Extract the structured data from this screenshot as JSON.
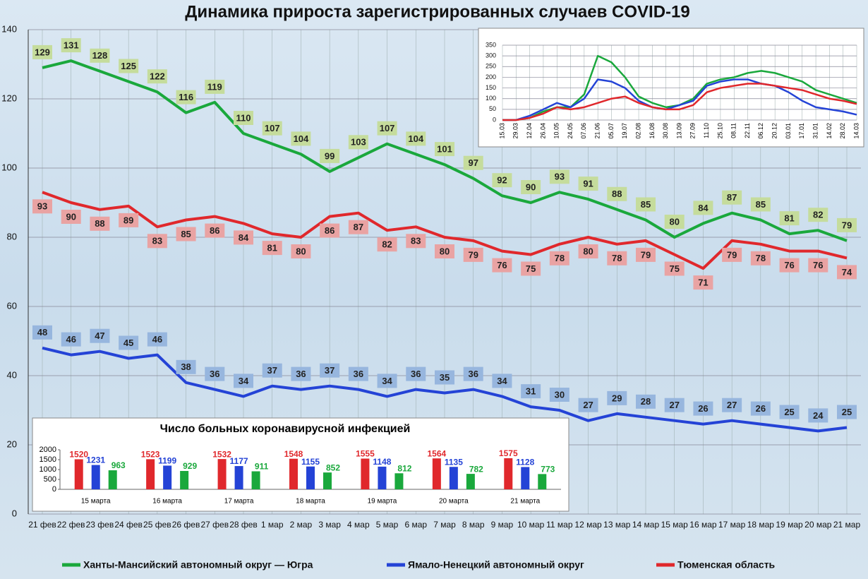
{
  "chart_data": [
    {
      "type": "line",
      "title": "Динамика прироста зарегистрированных случаев COVID-19",
      "categories": [
        "21 фев",
        "22 фев",
        "23 фев",
        "24 фев",
        "25 фев",
        "26 фев",
        "27 фев",
        "28 фев",
        "1 мар",
        "2 мар",
        "3 мар",
        "4 мар",
        "5 мар",
        "6 мар",
        "7 мар",
        "8 мар",
        "9 мар",
        "10 мар",
        "11 мар",
        "12 мар",
        "13 мар",
        "14 мар",
        "15 мар",
        "16 мар",
        "17 мар",
        "18 мар",
        "19 мар",
        "20 мар",
        "21 мар"
      ],
      "series": [
        {
          "name": "Ханты-Мансийский автономный округ — Югра",
          "color": "#1aa83c",
          "values": [
            129,
            131,
            128,
            125,
            122,
            116,
            119,
            110,
            107,
            104,
            99,
            103,
            107,
            104,
            101,
            97,
            92,
            90,
            93,
            91,
            88,
            85,
            80,
            84,
            87,
            85,
            81,
            82,
            79
          ]
        },
        {
          "name": "Ямало-Ненецкий автономный округ",
          "color": "#2443d6",
          "values": [
            48,
            46,
            47,
            45,
            46,
            38,
            36,
            34,
            37,
            36,
            37,
            36,
            34,
            36,
            35,
            36,
            34,
            31,
            30,
            27,
            29,
            28,
            27,
            26,
            27,
            26,
            25,
            24,
            25
          ]
        },
        {
          "name": "Тюменская область",
          "color": "#e0282c",
          "values": [
            93,
            90,
            88,
            89,
            83,
            85,
            86,
            84,
            81,
            80,
            86,
            87,
            82,
            83,
            80,
            79,
            76,
            75,
            78,
            80,
            78,
            79,
            75,
            71,
            79,
            78,
            76,
            76,
            74
          ]
        }
      ],
      "ylim": [
        0,
        140
      ],
      "yticks": [
        0,
        20,
        40,
        60,
        80,
        100,
        120,
        140
      ],
      "grid": true
    },
    {
      "type": "line",
      "categories": [
        "15.03",
        "29.03",
        "12.04",
        "26.04",
        "10.05",
        "24.05",
        "07.06",
        "21.06",
        "05.07",
        "19.07",
        "02.08",
        "16.08",
        "30.08",
        "13.09",
        "27.09",
        "11.10",
        "25.10",
        "08.11",
        "22.11",
        "06.12",
        "20.12",
        "03.01",
        "17.01",
        "31.01",
        "14.02",
        "28.02",
        "14.03"
      ],
      "series": [
        {
          "color": "#1aa83c",
          "values": [
            0,
            0,
            10,
            40,
            60,
            60,
            120,
            300,
            270,
            200,
            110,
            80,
            60,
            70,
            100,
            170,
            190,
            200,
            220,
            230,
            220,
            200,
            180,
            140,
            120,
            100,
            80
          ]
        },
        {
          "color": "#2443d6",
          "values": [
            0,
            0,
            20,
            50,
            80,
            60,
            100,
            190,
            180,
            150,
            90,
            60,
            50,
            70,
            90,
            160,
            180,
            190,
            190,
            170,
            160,
            130,
            90,
            60,
            50,
            40,
            25
          ]
        },
        {
          "color": "#e0282c",
          "values": [
            0,
            0,
            10,
            30,
            60,
            50,
            60,
            80,
            100,
            110,
            80,
            60,
            50,
            50,
            70,
            130,
            150,
            160,
            170,
            170,
            160,
            150,
            140,
            120,
            100,
            90,
            75
          ]
        }
      ],
      "ylim": [
        0,
        350
      ],
      "yticks": [
        0,
        50,
        100,
        150,
        200,
        250,
        300,
        350
      ],
      "grid": true
    },
    {
      "type": "bar",
      "title": "Число больных коронавирусной инфекцией",
      "categories": [
        "15 марта",
        "16 марта",
        "17 марта",
        "18 марта",
        "19 марта",
        "20 марта",
        "21 марта"
      ],
      "series": [
        {
          "color": "#e0282c",
          "values": [
            1520,
            1523,
            1532,
            1548,
            1555,
            1564,
            1575
          ]
        },
        {
          "color": "#2443d6",
          "values": [
            1231,
            1199,
            1177,
            1155,
            1148,
            1135,
            1128
          ]
        },
        {
          "color": "#1aa83c",
          "values": [
            963,
            929,
            911,
            852,
            812,
            782,
            773
          ]
        }
      ],
      "ylim": [
        0,
        2000
      ],
      "yticks": [
        0,
        500,
        1000,
        1500,
        2000
      ]
    }
  ]
}
